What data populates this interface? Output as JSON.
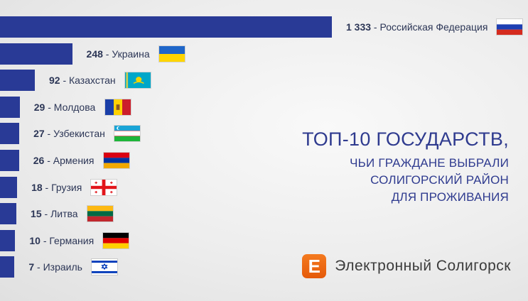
{
  "chart_data": {
    "type": "bar",
    "orientation": "horizontal",
    "categories": [
      "Российская Федерация",
      "Украина",
      "Казахстан",
      "Молдова",
      "Узбекистан",
      "Армения",
      "Грузия",
      "Литва",
      "Германия",
      "Израиль"
    ],
    "values": [
      1333,
      248,
      92,
      29,
      27,
      26,
      18,
      15,
      10,
      7
    ],
    "value_labels": [
      "1 333",
      "248",
      "92",
      "29",
      "27",
      "26",
      "18",
      "15",
      "10",
      "7"
    ],
    "flags": [
      "russia-flag-icon",
      "ukraine-flag-icon",
      "kazakhstan-flag-icon",
      "moldova-flag-icon",
      "uzbekistan-flag-icon",
      "armenia-flag-icon",
      "georgia-flag-icon",
      "lithuania-flag-icon",
      "germany-flag-icon",
      "israel-flag-icon"
    ],
    "title": "ТОП-10 ГОСУДАРСТВ,",
    "subtitle_lines": [
      "ЧЬИ ГРАЖДАНЕ ВЫБРАЛИ",
      "СОЛИГОРСКИЙ РАЙОН",
      "ДЛЯ ПРОЖИВАНИЯ"
    ],
    "legend": "none",
    "grid": false,
    "bar_color": "#293a96"
  },
  "logo": {
    "letter": "Е",
    "text": "Электронный Солигорск",
    "color": "#ef6c13"
  }
}
